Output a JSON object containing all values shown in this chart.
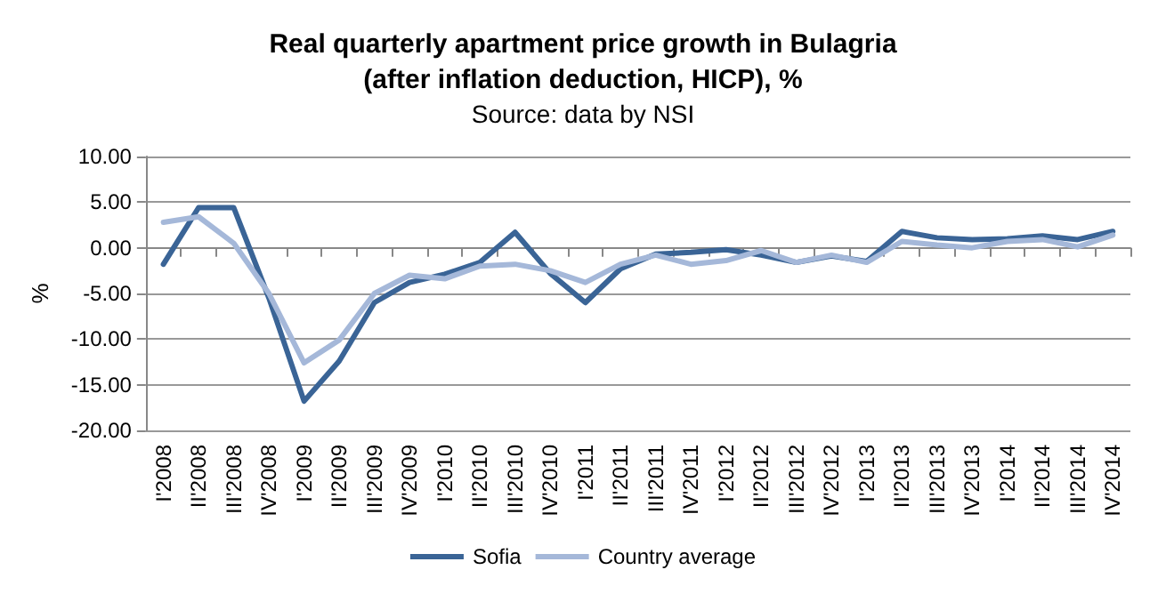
{
  "chart_data": {
    "type": "line",
    "title": "Real quarterly apartment price growth in Bulagria\n(after inflation deduction, HICP), %",
    "subtitle": "Source: data by NSI",
    "ylabel": "%",
    "categories": [
      "I'2008",
      "II'2008",
      "III'2008",
      "IV'2008",
      "I'2009",
      "II'2009",
      "III'2009",
      "IV'2009",
      "I'2010",
      "II'2010",
      "III'2010",
      "IV'2010",
      "I'2011",
      "II'2011",
      "III'2011",
      "IV'2011",
      "I'2012",
      "II'2012",
      "III'2012",
      "IV'2012",
      "I'2013",
      "II'2013",
      "III'2013",
      "IV'2013",
      "I'2014",
      "II'2014",
      "III'2014",
      "IV'2014"
    ],
    "series": [
      {
        "name": "Sofia",
        "color": "#3a6496",
        "values": [
          -1.8,
          4.4,
          4.4,
          -5.5,
          -16.8,
          -12.4,
          -6.0,
          -3.8,
          -2.9,
          -1.6,
          1.7,
          -2.8,
          -6.0,
          -2.3,
          -0.7,
          -0.5,
          -0.2,
          -0.8,
          -1.6,
          -0.9,
          -1.5,
          1.8,
          1.1,
          0.9,
          1.0,
          1.3,
          0.9,
          1.8
        ]
      },
      {
        "name": "Country average",
        "color": "#a5b8d9",
        "values": [
          2.8,
          3.4,
          0.5,
          -5.0,
          -12.6,
          -10.1,
          -5.0,
          -3.0,
          -3.4,
          -2.0,
          -1.8,
          -2.5,
          -3.8,
          -1.8,
          -0.8,
          -1.8,
          -1.4,
          -0.3,
          -1.6,
          -0.8,
          -1.6,
          0.7,
          0.3,
          0.0,
          0.7,
          0.9,
          0.1,
          1.4
        ]
      }
    ],
    "ylim": [
      -20,
      10
    ],
    "yticks": [
      {
        "value": -20,
        "label": "-20.00"
      },
      {
        "value": -15,
        "label": "-15.00"
      },
      {
        "value": -10,
        "label": "-10.00"
      },
      {
        "value": -5,
        "label": "-5.00"
      },
      {
        "value": 0,
        "label": "0.00"
      },
      {
        "value": 5,
        "label": "5.00"
      },
      {
        "value": 10,
        "label": "10.00"
      }
    ],
    "grid": "y",
    "legend": "bottom",
    "marker": "none",
    "line_style": "solid"
  }
}
